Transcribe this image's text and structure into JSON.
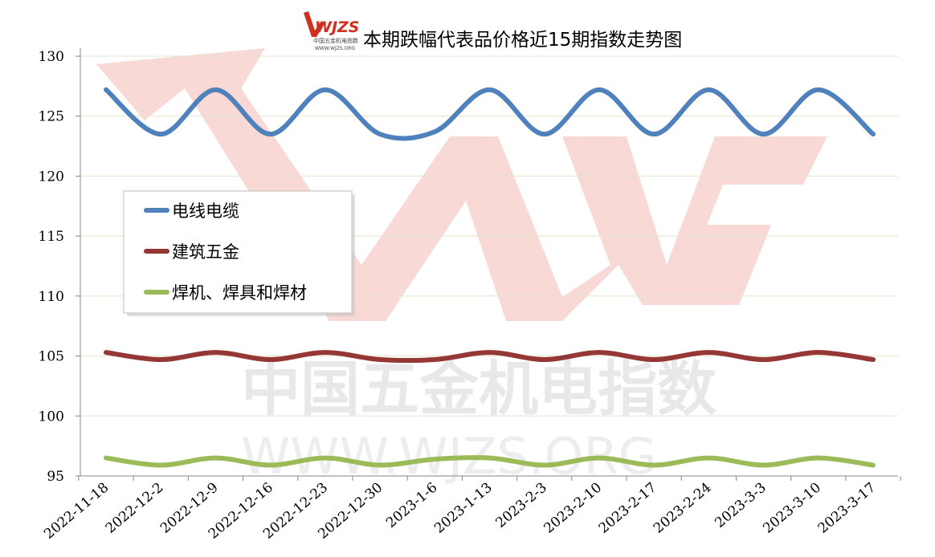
{
  "chart_data": {
    "type": "line",
    "title": "本期跌幅代表品价格近15期指数走势图",
    "categories": [
      "2022-11-18",
      "2022-12-2",
      "2022-12-9",
      "2022-12-16",
      "2022-12-23",
      "2022-12-30",
      "2023-1-6",
      "2023-1-13",
      "2023-2-3",
      "2023-2-10",
      "2023-2-17",
      "2023-2-24",
      "2023-3-3",
      "2023-3-10",
      "2023-3-17"
    ],
    "ylim": [
      95,
      130
    ],
    "yticks": [
      95,
      100,
      105,
      110,
      115,
      120,
      125,
      130
    ],
    "grid": true,
    "legend_position": "left",
    "series": [
      {
        "name": "电线电缆",
        "color": "#4F81BD",
        "values": [
          127.2,
          123.5,
          127.2,
          123.5,
          127.2,
          123.5,
          123.7,
          127.2,
          123.5,
          127.2,
          123.5,
          127.2,
          123.5,
          127.2,
          123.5
        ]
      },
      {
        "name": "建筑五金",
        "color": "#953735",
        "values": [
          105.3,
          104.7,
          105.3,
          104.7,
          105.3,
          104.7,
          104.7,
          105.3,
          104.7,
          105.3,
          104.7,
          105.3,
          104.7,
          105.3,
          104.7
        ]
      },
      {
        "name": "焊机、焊具和焊材",
        "color": "#9BBB59",
        "values": [
          96.5,
          95.9,
          96.5,
          95.9,
          96.5,
          95.9,
          96.4,
          96.5,
          95.9,
          96.5,
          95.9,
          96.5,
          95.9,
          96.5,
          95.9
        ]
      }
    ]
  },
  "watermark": {
    "logo_text": "WJZS",
    "line1": "中国五金机电指数",
    "line2": "WWW.WJZS.ORG",
    "color": "#e8877f"
  },
  "logo": {
    "text": "WJZS",
    "sub1": "中国五金机电指数",
    "sub2": "WWW.WJZS.ORG"
  }
}
